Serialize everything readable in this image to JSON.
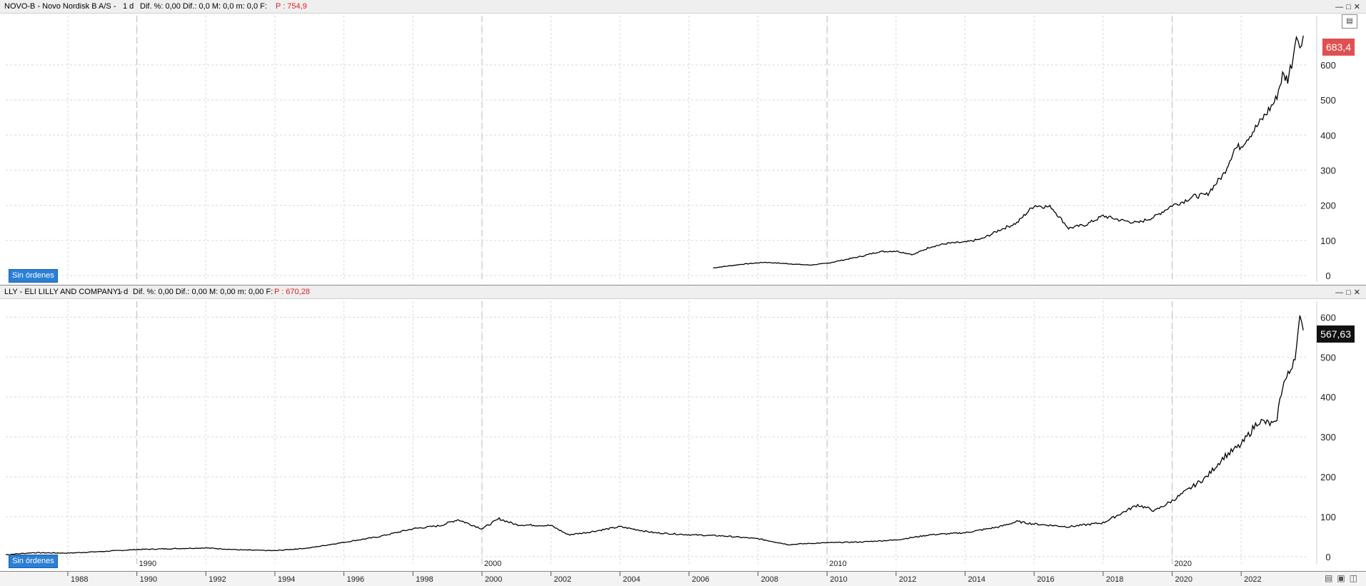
{
  "top_panel": {
    "header": {
      "symbol_desc": "NOVO-B - Novo Nordisk B A/S -",
      "interval": "1 d",
      "stats": "Dif. %: 0,00  Dif.: 0,0  M: 0,0  m: 0,0  F:",
      "last_label": "P : 754,9"
    },
    "price_tag": "683,4",
    "badge": "Sin órdenes"
  },
  "bottom_panel": {
    "header": {
      "symbol_desc": "LLY - ELI LILLY AND COMPANY -",
      "interval": "1 d",
      "stats": "Dif. %: 0,00  Dif.: 0,00  M: 0,00  m: 0,00  F:",
      "last_label": "P : 670,28"
    },
    "price_tag": "567,63",
    "badge": "Sin órdenes"
  },
  "colors": {
    "line": "#000000",
    "grid": "#d9d9d9",
    "tag_novo": "#e05050",
    "tag_lly": "#111111",
    "badge": "#2b7fd6",
    "header_red": "#e02020"
  },
  "chart_data": [
    {
      "type": "line",
      "title": "NOVO-B - Novo Nordisk B A/S",
      "xlim": [
        1986.2,
        2023.9
      ],
      "ylim": [
        -18,
        740
      ],
      "yticks": [
        "0",
        "100",
        "200",
        "300",
        "400",
        "500",
        "600"
      ],
      "series": [
        {
          "x": [
            2006.7,
            2007.5,
            2008.2,
            2009.0,
            2009.5,
            2010.0,
            2010.5,
            2011.0,
            2011.5,
            2012.0,
            2012.5,
            2013.0,
            2013.5,
            2014.0,
            2014.5,
            2015.0,
            2015.5,
            2016.0,
            2016.5,
            2017.0,
            2017.5,
            2018.0,
            2018.5,
            2019.0,
            2019.5,
            2020.0,
            2020.3,
            2020.6,
            2021.0,
            2021.5,
            2021.8,
            2022.0,
            2022.5,
            2023.0,
            2023.2,
            2023.35,
            2023.5,
            2023.6,
            2023.7,
            2023.8
          ],
          "y": [
            22,
            32,
            38,
            33,
            30,
            35,
            45,
            55,
            68,
            70,
            60,
            82,
            92,
            95,
            105,
            130,
            150,
            200,
            195,
            135,
            145,
            170,
            158,
            150,
            168,
            200,
            210,
            225,
            230,
            290,
            360,
            370,
            430,
            500,
            570,
            560,
            620,
            700,
            640,
            683
          ]
        }
      ]
    },
    {
      "type": "line",
      "title": "LLY - ELI LILLY AND COMPANY",
      "xlim": [
        1986.2,
        2023.9
      ],
      "ylim": [
        -18,
        640
      ],
      "yticks": [
        "0",
        "100",
        "200",
        "300",
        "400",
        "500",
        "600"
      ],
      "xticks": [
        "1988",
        "1990",
        "1992",
        "1994",
        "1996",
        "1998",
        "2000",
        "2002",
        "2004",
        "2006",
        "2008",
        "2010",
        "2012",
        "2014",
        "2016",
        "2018",
        "2020",
        "2022"
      ],
      "xmajor_labels": [
        "1990",
        "2000",
        "2010",
        "2020"
      ],
      "series": [
        {
          "x": [
            1986.2,
            1987.0,
            1988.0,
            1989.0,
            1990.0,
            1991.0,
            1992.0,
            1993.0,
            1994.0,
            1995.0,
            1996.0,
            1997.0,
            1998.0,
            1998.8,
            1999.3,
            2000.0,
            2000.5,
            2001.0,
            2002.0,
            2002.5,
            2003.0,
            2004.0,
            2005.0,
            2006.0,
            2007.0,
            2008.0,
            2008.9,
            2009.2,
            2010.0,
            2011.0,
            2012.0,
            2013.0,
            2014.0,
            2015.0,
            2015.5,
            2016.0,
            2017.0,
            2018.0,
            2019.0,
            2019.5,
            2020.0,
            2020.5,
            2021.0,
            2021.5,
            2022.0,
            2022.5,
            2023.0,
            2023.2,
            2023.4,
            2023.6,
            2023.7,
            2023.8
          ],
          "y": [
            5,
            10,
            9,
            13,
            18,
            20,
            22,
            17,
            15,
            22,
            36,
            50,
            70,
            78,
            93,
            70,
            95,
            80,
            78,
            55,
            60,
            75,
            60,
            55,
            52,
            45,
            30,
            32,
            35,
            37,
            42,
            55,
            60,
            75,
            88,
            82,
            75,
            85,
            130,
            115,
            140,
            170,
            200,
            250,
            280,
            340,
            330,
            430,
            460,
            520,
            590,
            567
          ]
        }
      ]
    }
  ]
}
